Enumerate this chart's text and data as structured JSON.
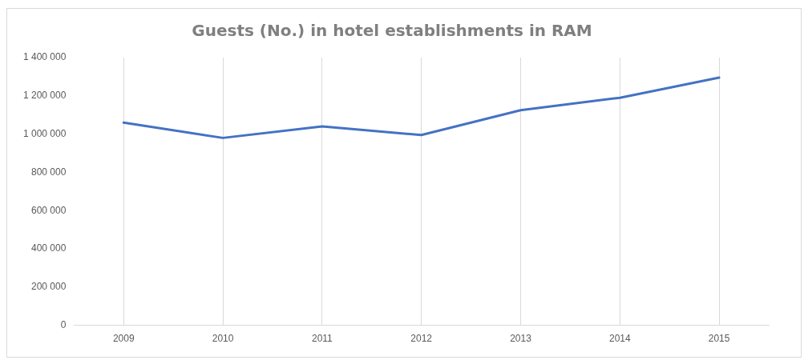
{
  "chart_data": {
    "type": "line",
    "title": "Guests (No.) in hotel establishments in RAM",
    "categories": [
      "2009",
      "2010",
      "2011",
      "2012",
      "2013",
      "2014",
      "2015"
    ],
    "series": [
      {
        "color": "#4472c4",
        "values": [
          1060000,
          980000,
          1040000,
          995000,
          1125000,
          1190000,
          1295000
        ]
      }
    ],
    "ylim": [
      0,
      1400000
    ],
    "yticks": [
      0,
      {
        "value": 200000,
        "label": "200 000"
      },
      {
        "value": 400000,
        "label": "400 000"
      },
      {
        "value": 600000,
        "label": "600 000"
      },
      {
        "value": 800000,
        "label": "800 000"
      },
      {
        "value": 1000000,
        "label": "1 000 000"
      },
      {
        "value": 1200000,
        "label": "1 200 000"
      },
      {
        "value": 1400000,
        "label": "1 400 000"
      }
    ],
    "grid": "x",
    "legend": false,
    "marker": "none",
    "line_style": "solid"
  }
}
